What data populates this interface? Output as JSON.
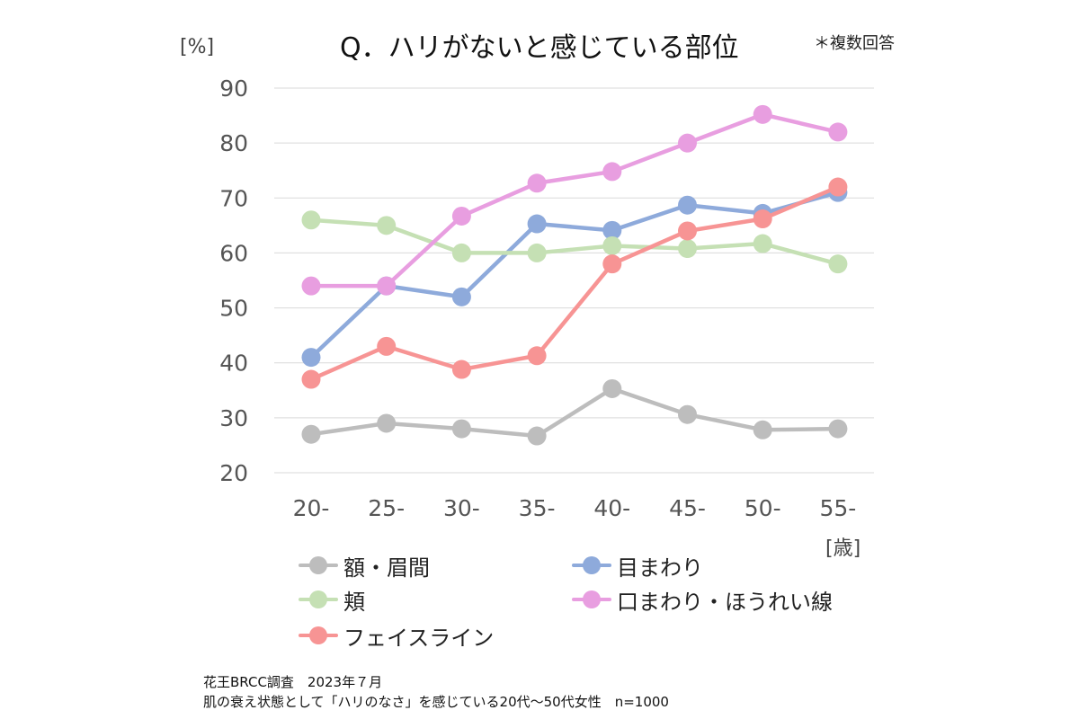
{
  "chart_data": {
    "type": "line",
    "title": "Q．ハリがないと感じている部位",
    "note": "＊複数回答",
    "ylabel": "[%]",
    "xlabel": "[歳]",
    "categories": [
      "20-",
      "25-",
      "30-",
      "35-",
      "40-",
      "45-",
      "50-",
      "55-"
    ],
    "ylim": [
      20,
      90
    ],
    "yticks": [
      20,
      30,
      40,
      50,
      60,
      70,
      80,
      90
    ],
    "grid": true,
    "legend_position": "bottom",
    "series": [
      {
        "name": "額・眉間",
        "color": "#bdbdbd",
        "values": [
          27,
          29,
          28,
          26.7,
          35.3,
          30.6,
          27.8,
          28
        ]
      },
      {
        "name": "目まわり",
        "color": "#8eaadb",
        "values": [
          41,
          54,
          52,
          65.3,
          64.1,
          68.7,
          67.2,
          71
        ]
      },
      {
        "name": "頬",
        "color": "#c5e0b4",
        "values": [
          66,
          65,
          60,
          60,
          61.3,
          60.8,
          61.7,
          58
        ]
      },
      {
        "name": "口まわり・ほうれい線",
        "color": "#e89ee0",
        "values": [
          54,
          54,
          66.7,
          72.7,
          74.8,
          80,
          85.2,
          82
        ]
      },
      {
        "name": "フェイスライン",
        "color": "#f79494",
        "values": [
          37,
          43,
          38.8,
          41.3,
          58,
          64,
          66.2,
          72
        ]
      }
    ]
  },
  "footer": {
    "line1": "花王BRCC調査　2023年７月",
    "line2": "肌の衰え状態として「ハリのなさ」を感じている20代～50代女性　n=1000"
  }
}
